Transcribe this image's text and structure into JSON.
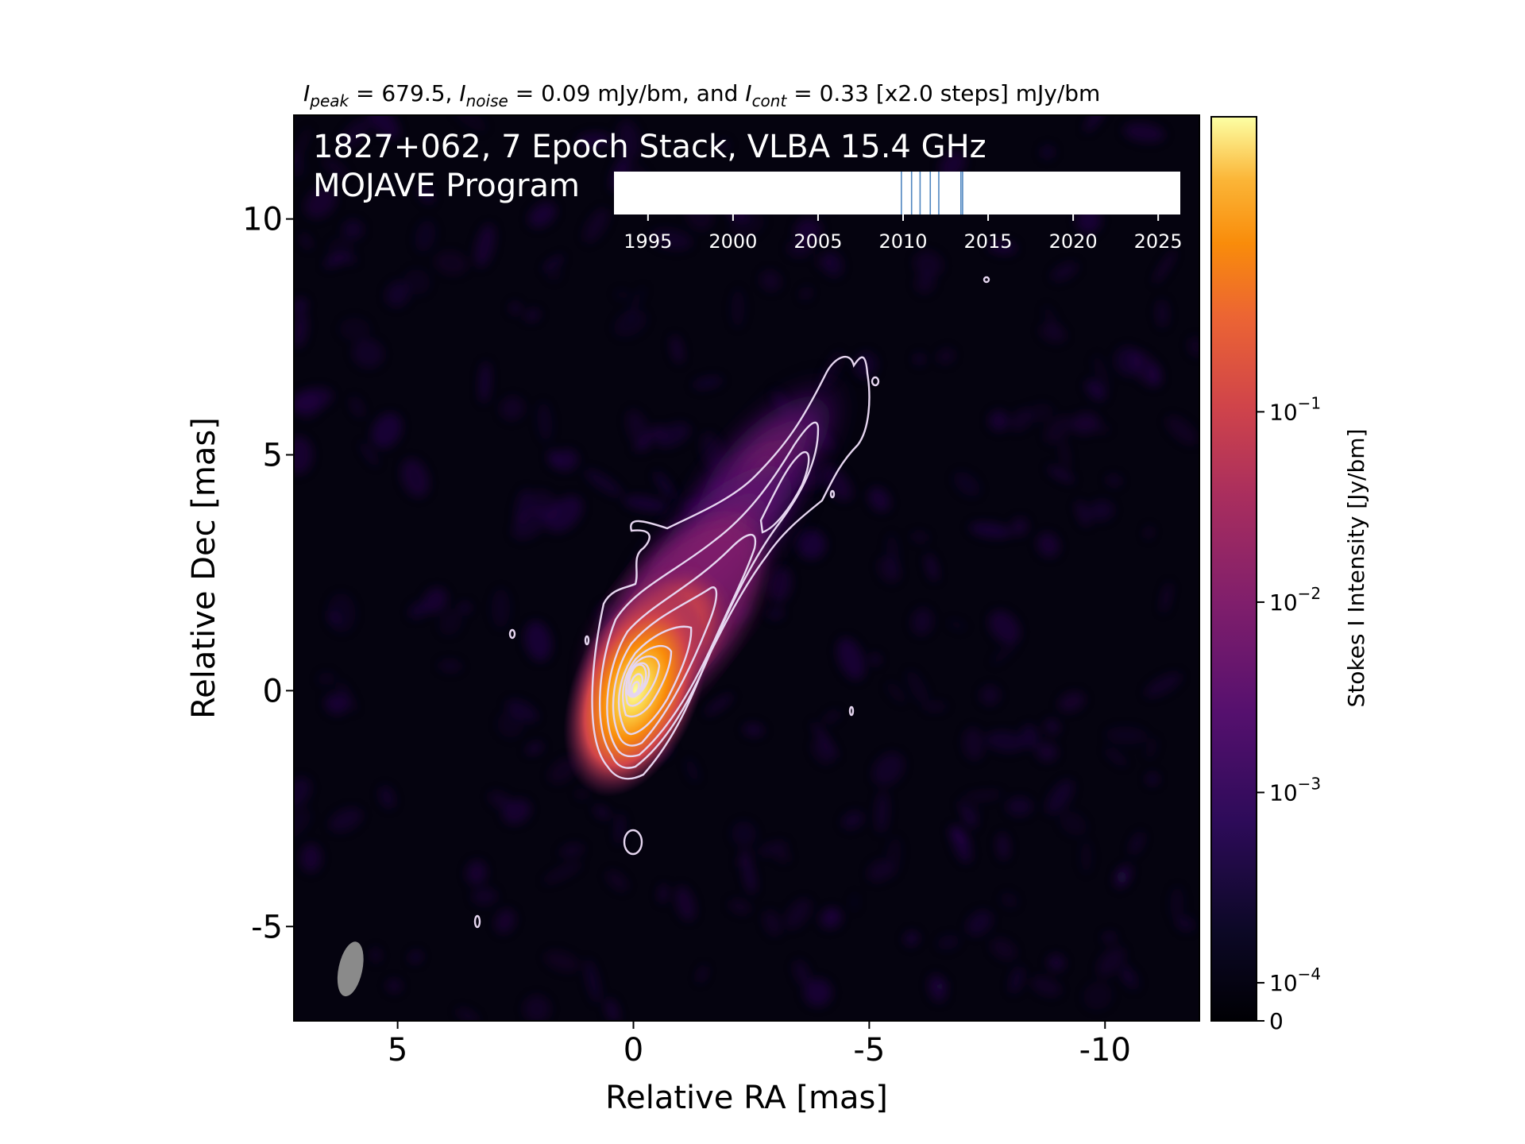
{
  "chart_data": {
    "type": "heatmap",
    "header": {
      "peak_sym": "I",
      "peak_sub": "peak",
      "peak_txt": " = 679.5, ",
      "noise_sym": "I",
      "noise_sub": "noise",
      "noise_txt": " = 0.09 mJy/bm, and ",
      "cont_sym": "I",
      "cont_sub": "cont",
      "cont_txt": " = 0.33 [x2.0 steps] mJy/bm"
    },
    "title_line1": "1827+062, 7 Epoch Stack, VLBA 15.4 GHz",
    "title_line2": "MOJAVE Program",
    "xlabel": "Relative RA [mas]",
    "ylabel": "Relative Dec [mas]",
    "xlim": [
      7.2,
      -12.0
    ],
    "ylim": [
      -7.0,
      12.2
    ],
    "xticks": [
      5,
      0,
      -5,
      -10
    ],
    "xtick_labels": [
      "5",
      "0",
      "-5",
      "-10"
    ],
    "yticks": [
      -5,
      0,
      5,
      10
    ],
    "ytick_labels": [
      "-5",
      "0",
      "5",
      "10"
    ],
    "colorbar": {
      "label": "Stokes I Intensity [Jy/bm]",
      "scale": "log",
      "colormap": "inferno",
      "ticks": [
        0,
        0.0001,
        0.001,
        0.01,
        0.1
      ],
      "tick_base": [
        "0",
        "10",
        "10",
        "10",
        "10"
      ],
      "tick_exp": [
        "",
        "−4",
        "−3",
        "−2",
        "−1"
      ]
    },
    "timeline": {
      "ticks": [
        1995,
        2000,
        2005,
        2010,
        2015,
        2020,
        2025
      ],
      "tick_labels": [
        "1995",
        "2000",
        "2005",
        "2010",
        "2015",
        "2020",
        "2025"
      ],
      "range": [
        1993.0,
        2026.3
      ],
      "epochs": [
        2009.9,
        2010.5,
        2011.0,
        2011.6,
        2012.1,
        2013.4,
        2013.5
      ]
    },
    "beam": {
      "ra": 6.0,
      "dec": -5.9
    },
    "contour_base_mJy_per_bm": 0.33,
    "contour_step_factor": 2.0,
    "peak_intensity_mJy_per_bm": 679.5
  }
}
